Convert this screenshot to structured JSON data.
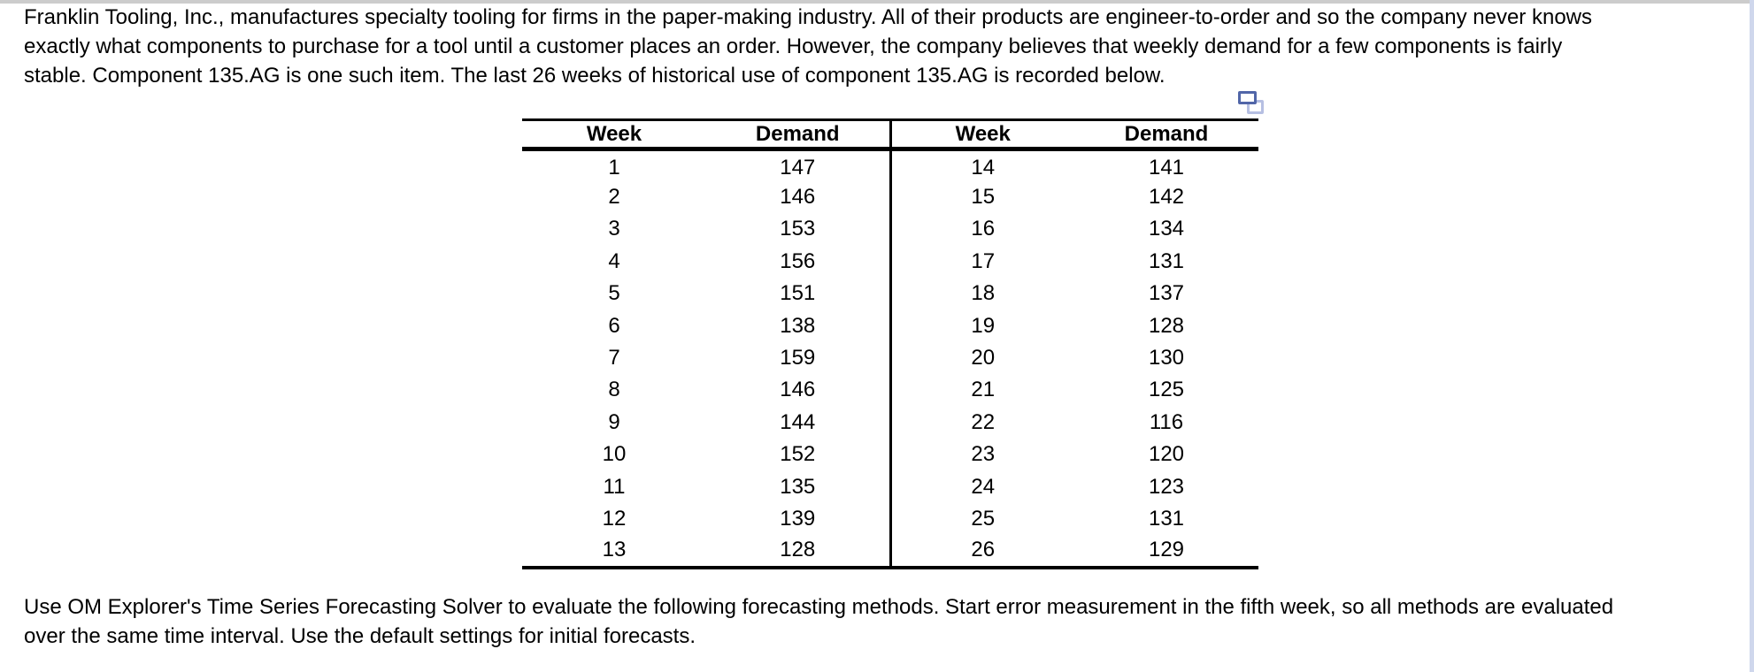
{
  "intro": {
    "lines": [
      "Franklin Tooling, Inc., manufactures specialty tooling for firms in the paper-making industry. All of their products are engineer-to-order and so the company never knows",
      "exactly what components to purchase for a tool until a customer places an order. However, the company believes that weekly demand for a few components is fairly",
      "stable. Component 135.AG is one such item. The last 26 weeks of historical use of component 135.AG is recorded below."
    ]
  },
  "instructions": {
    "lines": [
      "Use OM Explorer's Time Series Forecasting Solver to evaluate the following forecasting methods. Start error measurement in the fifth week, so all methods are evaluated",
      "over the same time interval. Use the default settings for initial forecasts."
    ]
  },
  "table": {
    "headers": [
      "Week",
      "Demand",
      "Week",
      "Demand"
    ],
    "rows": [
      [
        "1",
        "147",
        "14",
        "141"
      ],
      [
        "2",
        "146",
        "15",
        "142"
      ],
      [
        "3",
        "153",
        "16",
        "134"
      ],
      [
        "4",
        "156",
        "17",
        "131"
      ],
      [
        "5",
        "151",
        "18",
        "137"
      ],
      [
        "6",
        "138",
        "19",
        "128"
      ],
      [
        "7",
        "159",
        "20",
        "130"
      ],
      [
        "8",
        "146",
        "21",
        "125"
      ],
      [
        "9",
        "144",
        "22",
        "116"
      ],
      [
        "10",
        "152",
        "23",
        "120"
      ],
      [
        "11",
        "135",
        "24",
        "123"
      ],
      [
        "12",
        "139",
        "25",
        "131"
      ],
      [
        "13",
        "128",
        "26",
        "129"
      ]
    ]
  },
  "icons": {
    "copy": "copy-icon"
  },
  "colors": {
    "text": "#000000",
    "table_rule": "#000000",
    "icon_dark": "#5166a8",
    "icon_light": "#b6bfe2",
    "top_strip": "#cccccc",
    "scrollbar_edge": "#cfd7ec"
  }
}
